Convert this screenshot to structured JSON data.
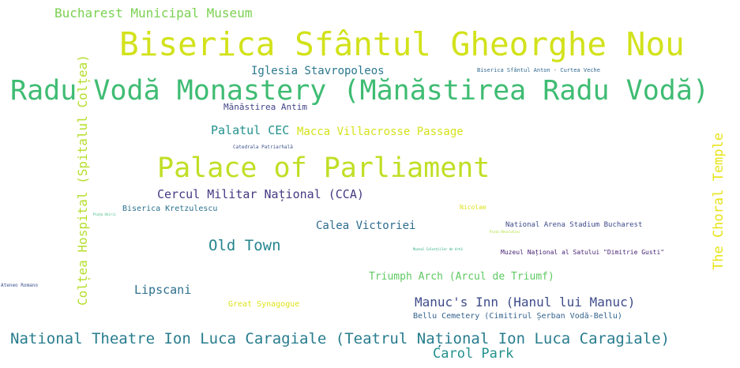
{
  "wordcloud": {
    "words": [
      {
        "text": "Bucharest Municipal Museum",
        "color": "#7ad151"
      },
      {
        "text": "Biserica Sfântul Gheorghe Nou",
        "color": "#d2e21b"
      },
      {
        "text": "Iglesia Stavropoleos",
        "color": "#2a788e"
      },
      {
        "text": "Biserica Sfântul Anton - Curtea Veche",
        "color": "#31688e"
      },
      {
        "text": "Radu Vodă Monastery (Mănăstirea Radu Vodă)",
        "color": "#3fbc73"
      },
      {
        "text": "Mănăstirea Antim",
        "color": "#414487"
      },
      {
        "text": "Palatul CEC",
        "color": "#21918c"
      },
      {
        "text": "Macca Villacrosse Passage",
        "color": "#d5e21a"
      },
      {
        "text": "Catedrala Patriarhală",
        "color": "#3b528b"
      },
      {
        "text": "Palace of Parliament",
        "color": "#c0df25"
      },
      {
        "text": "Cercul Militar Național (CCA)",
        "color": "#443983"
      },
      {
        "text": "Biserica Kretzulescu",
        "color": "#2c728e"
      },
      {
        "text": "Piața Unirii",
        "color": "#35b779"
      },
      {
        "text": "Nicolae",
        "color": "#dde318"
      },
      {
        "text": "Calea Victoriei",
        "color": "#2f6c8e"
      },
      {
        "text": "National Arena Stadium Bucharest",
        "color": "#3e4a89"
      },
      {
        "text": "Piața Revoluției",
        "color": "#addc30"
      },
      {
        "text": "Old Town",
        "color": "#25858e"
      },
      {
        "text": "Muzeul Colecțiilor de Artă",
        "color": "#23a983"
      },
      {
        "text": "Muzeul Național al Satului \"Dimitrie Gusti\"",
        "color": "#482475"
      },
      {
        "text": "Triumph Arch (Arcul de Triumf)",
        "color": "#5ec962"
      },
      {
        "text": "Ateneo Romano",
        "color": "#3b518b"
      },
      {
        "text": "Lipscani",
        "color": "#2d708e"
      },
      {
        "text": "Great Synagogue",
        "color": "#dfe318"
      },
      {
        "text": "Manuc's Inn (Hanul lui Manuc)",
        "color": "#3e4c8a"
      },
      {
        "text": "Bellu Cemetery (Cimitirul Șerban Vodă-Bellu)",
        "color": "#33638d"
      },
      {
        "text": "National Theatre Ion Luca Caragiale (Teatrul Național Ion Luca Caragiale)",
        "color": "#287d8e"
      },
      {
        "text": "Carol Park",
        "color": "#21908d"
      },
      {
        "text": "Colțea Hospital (Spitalul Colțea)",
        "color": "#b5de2b"
      },
      {
        "text": "The Choral Temple",
        "color": "#e7e419"
      }
    ]
  }
}
